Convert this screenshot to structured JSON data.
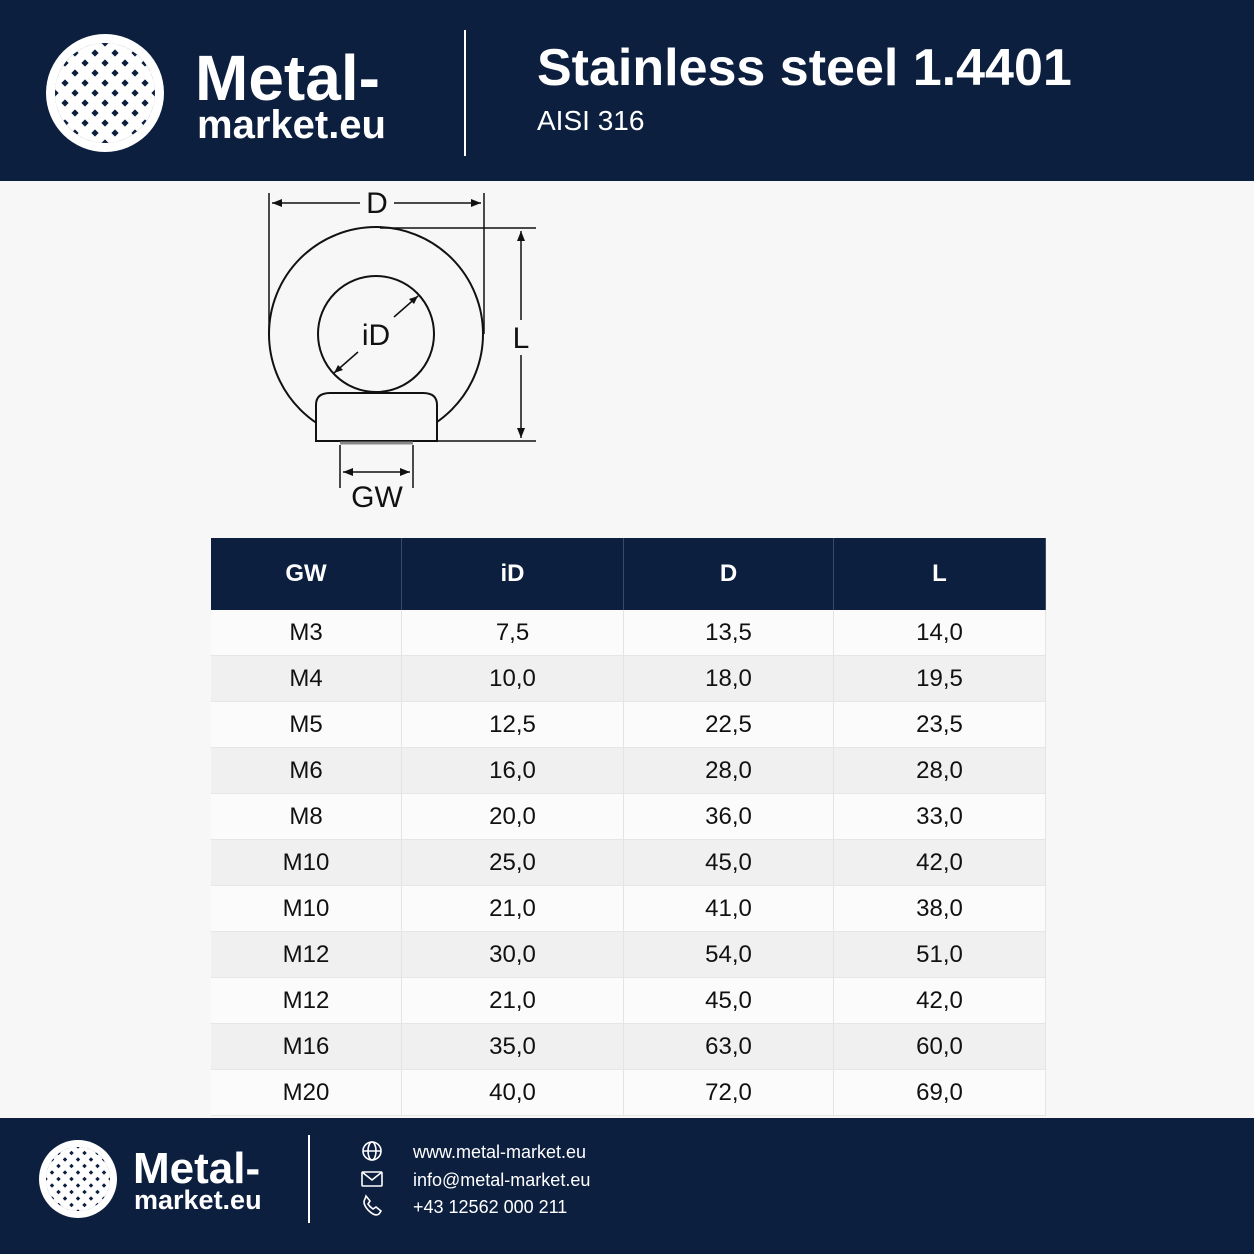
{
  "header": {
    "logo_line1": "Metal-",
    "logo_line2": "market.eu",
    "title": "Stainless steel 1.4401",
    "subtitle": "AISI 316"
  },
  "diagram": {
    "labels": {
      "D": "D",
      "iD": "iD",
      "L": "L",
      "GW": "GW"
    }
  },
  "table": {
    "headers": [
      "GW",
      "iD",
      "D",
      "L"
    ],
    "rows": [
      [
        "M3",
        "7,5",
        "13,5",
        "14,0"
      ],
      [
        "M4",
        "10,0",
        "18,0",
        "19,5"
      ],
      [
        "M5",
        "12,5",
        "22,5",
        "23,5"
      ],
      [
        "M6",
        "16,0",
        "28,0",
        "28,0"
      ],
      [
        "M8",
        "20,0",
        "36,0",
        "33,0"
      ],
      [
        "M10",
        "25,0",
        "45,0",
        "42,0"
      ],
      [
        "M10",
        "21,0",
        "41,0",
        "38,0"
      ],
      [
        "M12",
        "30,0",
        "54,0",
        "51,0"
      ],
      [
        "M12",
        "21,0",
        "45,0",
        "42,0"
      ],
      [
        "M16",
        "35,0",
        "63,0",
        "60,0"
      ],
      [
        "M20",
        "40,0",
        "72,0",
        "69,0"
      ]
    ]
  },
  "footer": {
    "logo_line1": "Metal-",
    "logo_line2": "market.eu",
    "website": "www.metal-market.eu",
    "email": "info@metal-market.eu",
    "phone": "+43 12562 000 211"
  }
}
